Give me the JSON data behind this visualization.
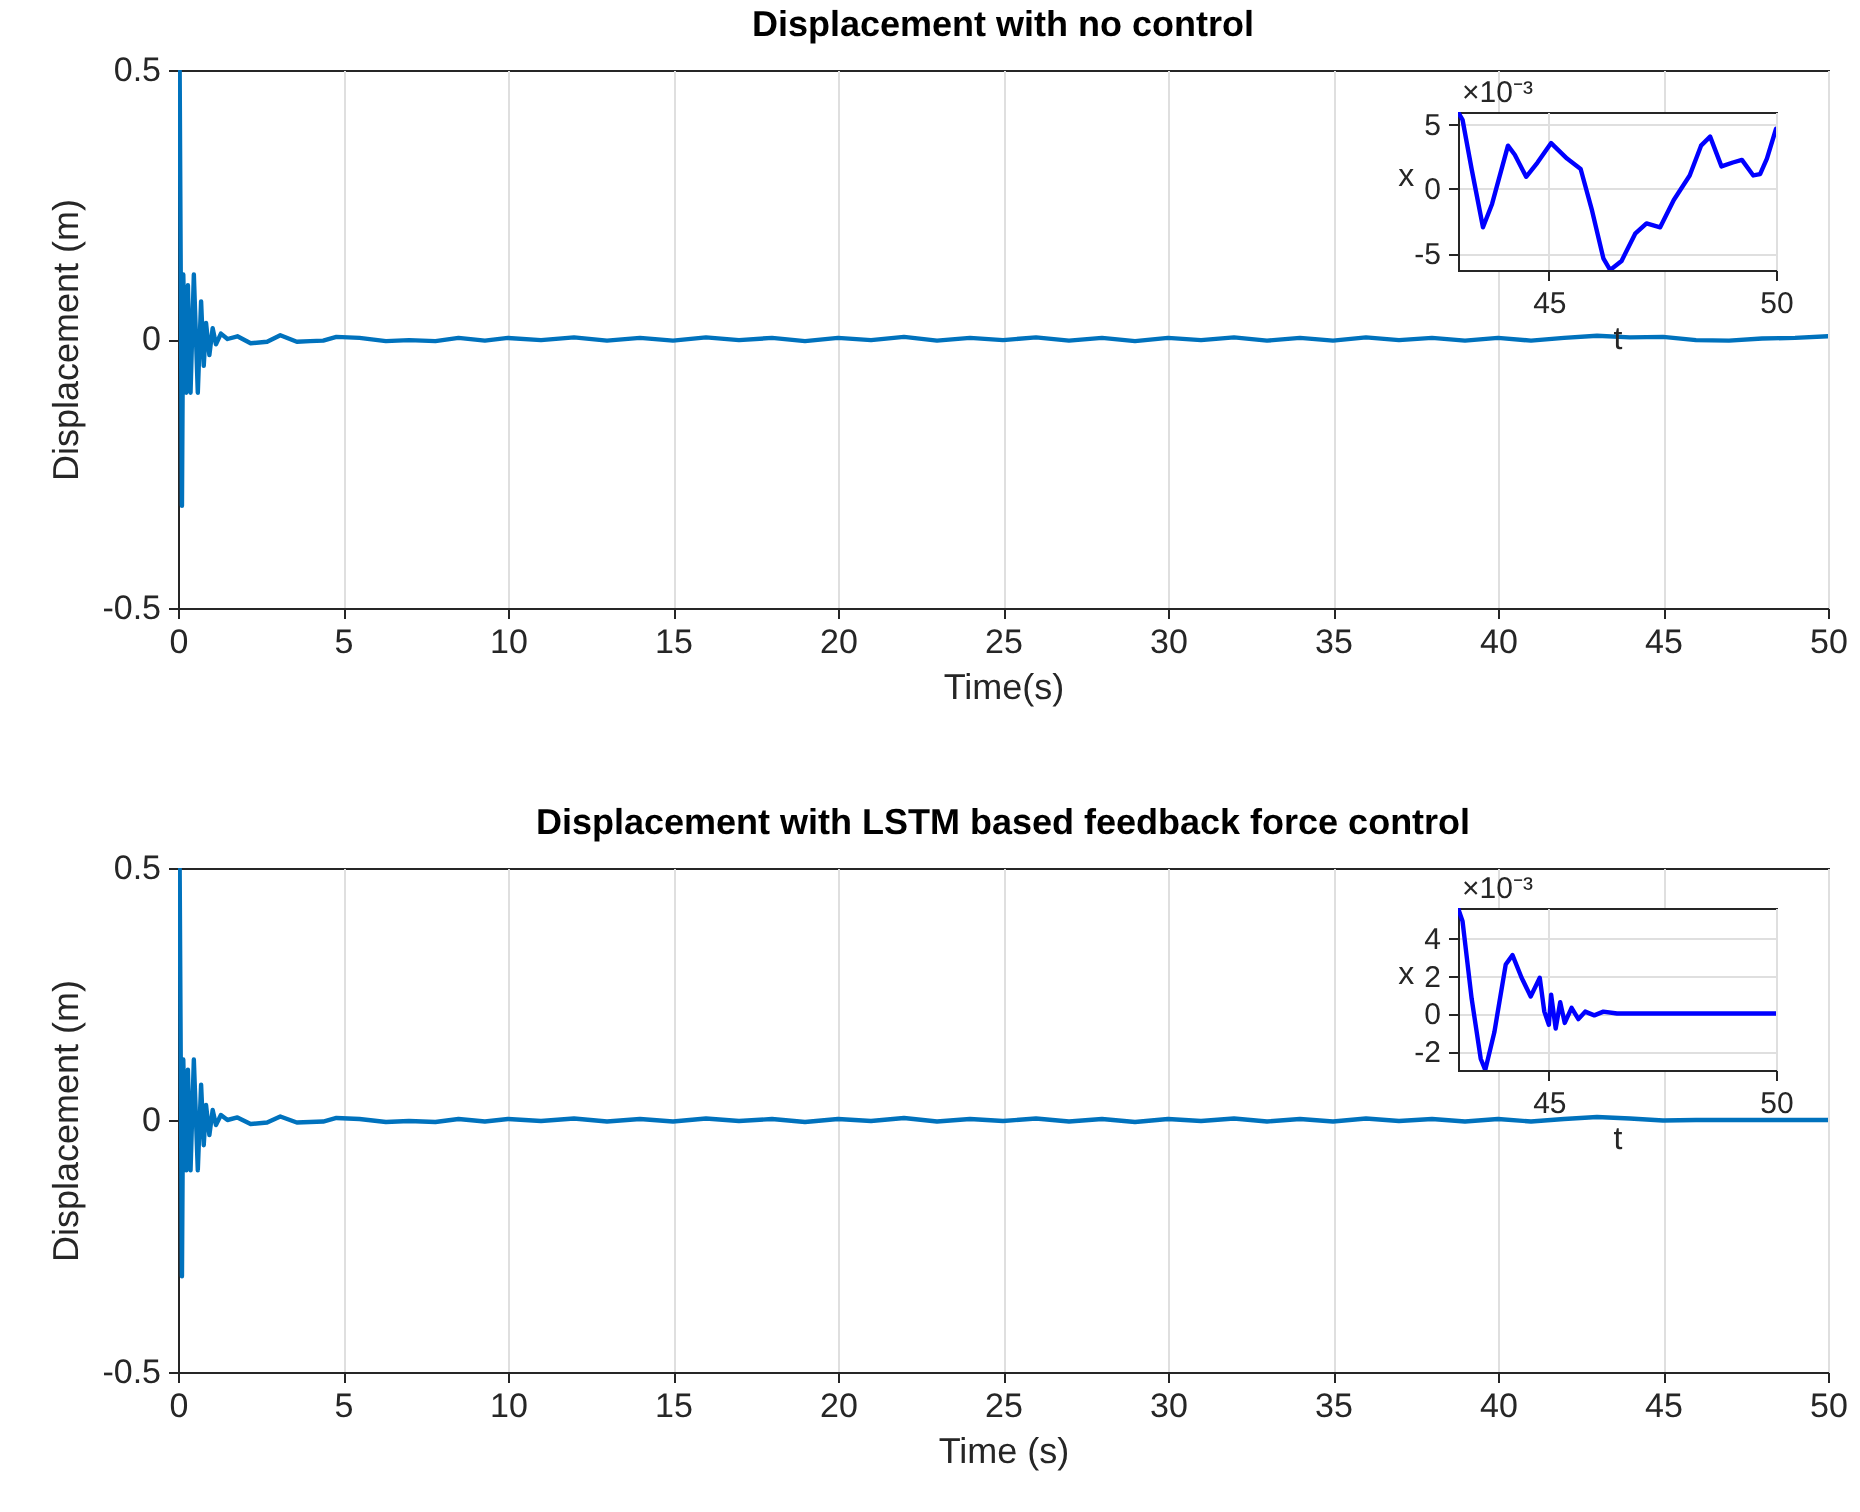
{
  "chart_data": [
    {
      "type": "line",
      "title": "Displacement with no control",
      "xlabel": "Time(s)",
      "ylabel": "Displacement (m)",
      "x": [
        0,
        0.05,
        0.12,
        0.16,
        0.2,
        0.25,
        0.3,
        0.38,
        0.48,
        0.6,
        0.7,
        0.78,
        0.85,
        0.95,
        1.05,
        1.15,
        1.3,
        1.5,
        1.8,
        2.2,
        2.7,
        3.1,
        3.6,
        4.0,
        4.4,
        4.8,
        5.5,
        6.3,
        7.0,
        7.8,
        8.5,
        9.3,
        10,
        11,
        12,
        13,
        14,
        15,
        16,
        17,
        18,
        19,
        20,
        21,
        22,
        23,
        24,
        25,
        26,
        27,
        28,
        29,
        30,
        31,
        32,
        33,
        34,
        35,
        36,
        37,
        38,
        39,
        40,
        41,
        42,
        43,
        44,
        45,
        46,
        47,
        48,
        49,
        50
      ],
      "series": [
        {
          "color": "#0072bd",
          "values": [
            0.5,
            0.5,
            -0.31,
            0.12,
            0.0,
            -0.1,
            0.1,
            -0.1,
            0.12,
            -0.1,
            0.07,
            -0.05,
            0.03,
            -0.03,
            0.02,
            -0.01,
            0.01,
            0,
            0.005,
            -0.008,
            -0.005,
            0.007,
            -0.005,
            -0.004,
            -0.003,
            0.004,
            0.002,
            -0.004,
            -0.002,
            -0.004,
            0.002,
            -0.003,
            0.002,
            -0.002,
            0.003,
            -0.003,
            0.002,
            -0.003,
            0.003,
            -0.002,
            0.002,
            -0.004,
            0.002,
            -0.002,
            0.004,
            -0.003,
            0.002,
            -0.002,
            0.003,
            -0.003,
            0.002,
            -0.004,
            0.002,
            -0.002,
            0.003,
            -0.003,
            0.002,
            -0.003,
            0.003,
            -0.002,
            0.002,
            -0.003,
            0.002,
            -0.003,
            0.002,
            0.006,
            0.003,
            0.004,
            -0.002,
            -0.003,
            0.001,
            0.002,
            0.005
          ]
        }
      ],
      "xlim": [
        0,
        50
      ],
      "ylim": [
        -0.5,
        0.5
      ],
      "xticks": [
        0,
        5,
        10,
        15,
        20,
        25,
        30,
        35,
        40,
        45,
        50
      ],
      "yticks": [
        -0.5,
        0,
        0.5
      ],
      "grid": "x"
    },
    {
      "type": "line",
      "xlabel": "t",
      "ylabel": "x",
      "annotations": [
        "×10⁻³"
      ],
      "x": [
        43,
        43.1,
        43.3,
        43.55,
        43.75,
        44.1,
        44.25,
        44.5,
        44.75,
        45.05,
        45.4,
        45.7,
        45.95,
        46.2,
        46.35,
        46.6,
        46.9,
        47.15,
        47.45,
        47.75,
        48.1,
        48.35,
        48.55,
        48.8,
        49.05,
        49.25,
        49.5,
        49.65,
        49.8,
        50
      ],
      "series": [
        {
          "color": "#0000ff",
          "values": [
            5.9,
            5.3,
            1.5,
            -3.0,
            -1.2,
            3.3,
            2.6,
            0.9,
            2.0,
            3.5,
            2.3,
            1.5,
            -1.7,
            -5.4,
            -6.3,
            -5.6,
            -3.5,
            -2.7,
            -3.0,
            -0.9,
            1.0,
            3.3,
            4.0,
            1.7,
            2.0,
            2.2,
            1.0,
            1.1,
            2.3,
            4.6
          ]
        }
      ],
      "xlim": [
        43,
        50
      ],
      "ylim": [
        -6.3,
        5.9
      ],
      "xticks": [
        45,
        50
      ],
      "yticks": [
        -5,
        0,
        5
      ],
      "grid": true
    },
    {
      "type": "line",
      "title": "Displacement with LSTM based feedback force control",
      "xlabel": "Time (s)",
      "ylabel": "Displacement (m)",
      "x": [
        0,
        0.05,
        0.12,
        0.16,
        0.2,
        0.25,
        0.3,
        0.38,
        0.48,
        0.6,
        0.7,
        0.78,
        0.85,
        0.95,
        1.05,
        1.15,
        1.3,
        1.5,
        1.8,
        2.2,
        2.7,
        3.1,
        3.6,
        4.0,
        4.4,
        4.8,
        5.5,
        6.3,
        7.0,
        7.8,
        8.5,
        9.3,
        10,
        11,
        12,
        13,
        14,
        15,
        16,
        17,
        18,
        19,
        20,
        21,
        22,
        23,
        24,
        25,
        26,
        27,
        28,
        29,
        30,
        31,
        32,
        33,
        34,
        35,
        36,
        37,
        38,
        39,
        40,
        41,
        42,
        43,
        44,
        45,
        46,
        47,
        48,
        49,
        50
      ],
      "series": [
        {
          "color": "#0072bd",
          "values": [
            0.5,
            0.5,
            -0.31,
            0.12,
            0.0,
            -0.1,
            0.1,
            -0.1,
            0.12,
            -0.1,
            0.07,
            -0.05,
            0.03,
            -0.03,
            0.02,
            -0.01,
            0.01,
            0,
            0.005,
            -0.008,
            -0.005,
            0.007,
            -0.005,
            -0.004,
            -0.003,
            0.004,
            0.002,
            -0.004,
            -0.002,
            -0.004,
            0.002,
            -0.003,
            0.002,
            -0.002,
            0.003,
            -0.003,
            0.002,
            -0.003,
            0.003,
            -0.002,
            0.002,
            -0.004,
            0.002,
            -0.002,
            0.004,
            -0.003,
            0.002,
            -0.002,
            0.003,
            -0.003,
            0.002,
            -0.004,
            0.002,
            -0.002,
            0.003,
            -0.003,
            0.002,
            -0.003,
            0.003,
            -0.002,
            0.002,
            -0.003,
            0.002,
            -0.003,
            0.002,
            0.006,
            0.003,
            -0.001,
            0,
            0,
            0,
            0,
            0
          ]
        }
      ],
      "xlim": [
        0,
        50
      ],
      "ylim": [
        -0.5,
        0.5
      ],
      "xticks": [
        0,
        5,
        10,
        15,
        20,
        25,
        30,
        35,
        40,
        45,
        50
      ],
      "yticks": [
        -0.5,
        0,
        0.5
      ],
      "grid": "x"
    },
    {
      "type": "line",
      "xlabel": "t",
      "ylabel": "x",
      "annotations": [
        "×10⁻³"
      ],
      "x": [
        43,
        43.1,
        43.3,
        43.5,
        43.6,
        43.8,
        44.05,
        44.2,
        44.4,
        44.6,
        44.8,
        44.9,
        45.0,
        45.05,
        45.15,
        45.25,
        45.35,
        45.5,
        45.65,
        45.8,
        46.0,
        46.2,
        46.5,
        50
      ],
      "series": [
        {
          "color": "#0000ff",
          "values": [
            5.6,
            4.9,
            0.8,
            -2.4,
            -3.0,
            -1.0,
            2.6,
            3.1,
            1.9,
            0.9,
            1.9,
            0.1,
            -0.6,
            1.0,
            -0.8,
            0.6,
            -0.5,
            0.3,
            -0.3,
            0.1,
            -0.1,
            0.1,
            0,
            0
          ]
        }
      ],
      "xlim": [
        43,
        50
      ],
      "ylim": [
        -3.0,
        5.6
      ],
      "xticks": [
        45,
        50
      ],
      "yticks": [
        -2,
        0,
        2,
        4
      ],
      "grid": true
    }
  ]
}
